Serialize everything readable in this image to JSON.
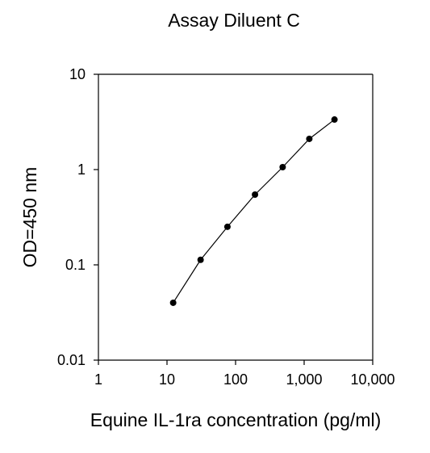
{
  "chart_data": {
    "type": "line",
    "title": "Assay Diluent C",
    "xlabel": "Equine IL-1ra concentration (pg/ml)",
    "ylabel": "OD=450 nm",
    "x_scale": "log",
    "y_scale": "log",
    "xlim": [
      1,
      10000
    ],
    "ylim": [
      0.01,
      10
    ],
    "x_ticks": [
      {
        "value": 1,
        "label": "1"
      },
      {
        "value": 10,
        "label": "10"
      },
      {
        "value": 100,
        "label": "100"
      },
      {
        "value": 1000,
        "label": "1,000"
      },
      {
        "value": 10000,
        "label": "10,000"
      }
    ],
    "y_ticks": [
      {
        "value": 0.01,
        "label": "0.01"
      },
      {
        "value": 0.1,
        "label": "0.1"
      },
      {
        "value": 1,
        "label": "1"
      },
      {
        "value": 10,
        "label": "10"
      }
    ],
    "grid": false,
    "legend": false,
    "series": [
      {
        "x": [
          12.3,
          30.9,
          76.1,
          192,
          486,
          1190,
          2770
        ],
        "y": [
          0.04,
          0.113,
          0.251,
          0.546,
          1.06,
          2.1,
          3.35
        ]
      }
    ],
    "colors": {
      "line": "#000000",
      "marker": "#000000",
      "axis": "#000000"
    }
  }
}
